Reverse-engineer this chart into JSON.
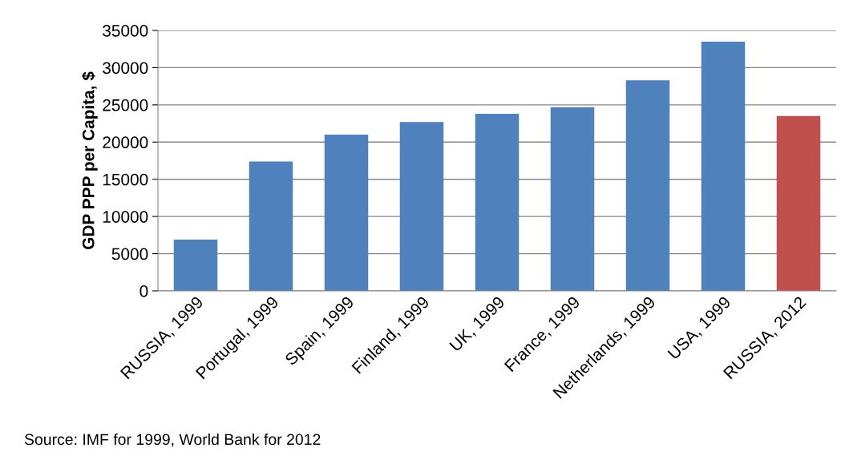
{
  "chart_data": {
    "type": "bar",
    "ylabel": "GDP PPP per Capita, $",
    "categories": [
      "RUSSIA, 1999",
      "Portugal, 1999",
      "Spain, 1999",
      "Finland, 1999",
      "UK, 1999",
      "France, 1999",
      "Netherlands, 1999",
      "USA, 1999",
      "RUSSIA, 2012"
    ],
    "values": [
      6900,
      17400,
      21000,
      22700,
      23800,
      24700,
      28300,
      33500,
      23500
    ],
    "colors": [
      "#4f81bd",
      "#4f81bd",
      "#4f81bd",
      "#4f81bd",
      "#4f81bd",
      "#4f81bd",
      "#4f81bd",
      "#4f81bd",
      "#c0504d"
    ],
    "ylim": [
      0,
      35000
    ],
    "yticks": [
      0,
      5000,
      10000,
      15000,
      20000,
      25000,
      30000,
      35000
    ],
    "grid": "y",
    "annotations": [
      "Source: IMF for 1999, World Bank for 2012"
    ]
  }
}
